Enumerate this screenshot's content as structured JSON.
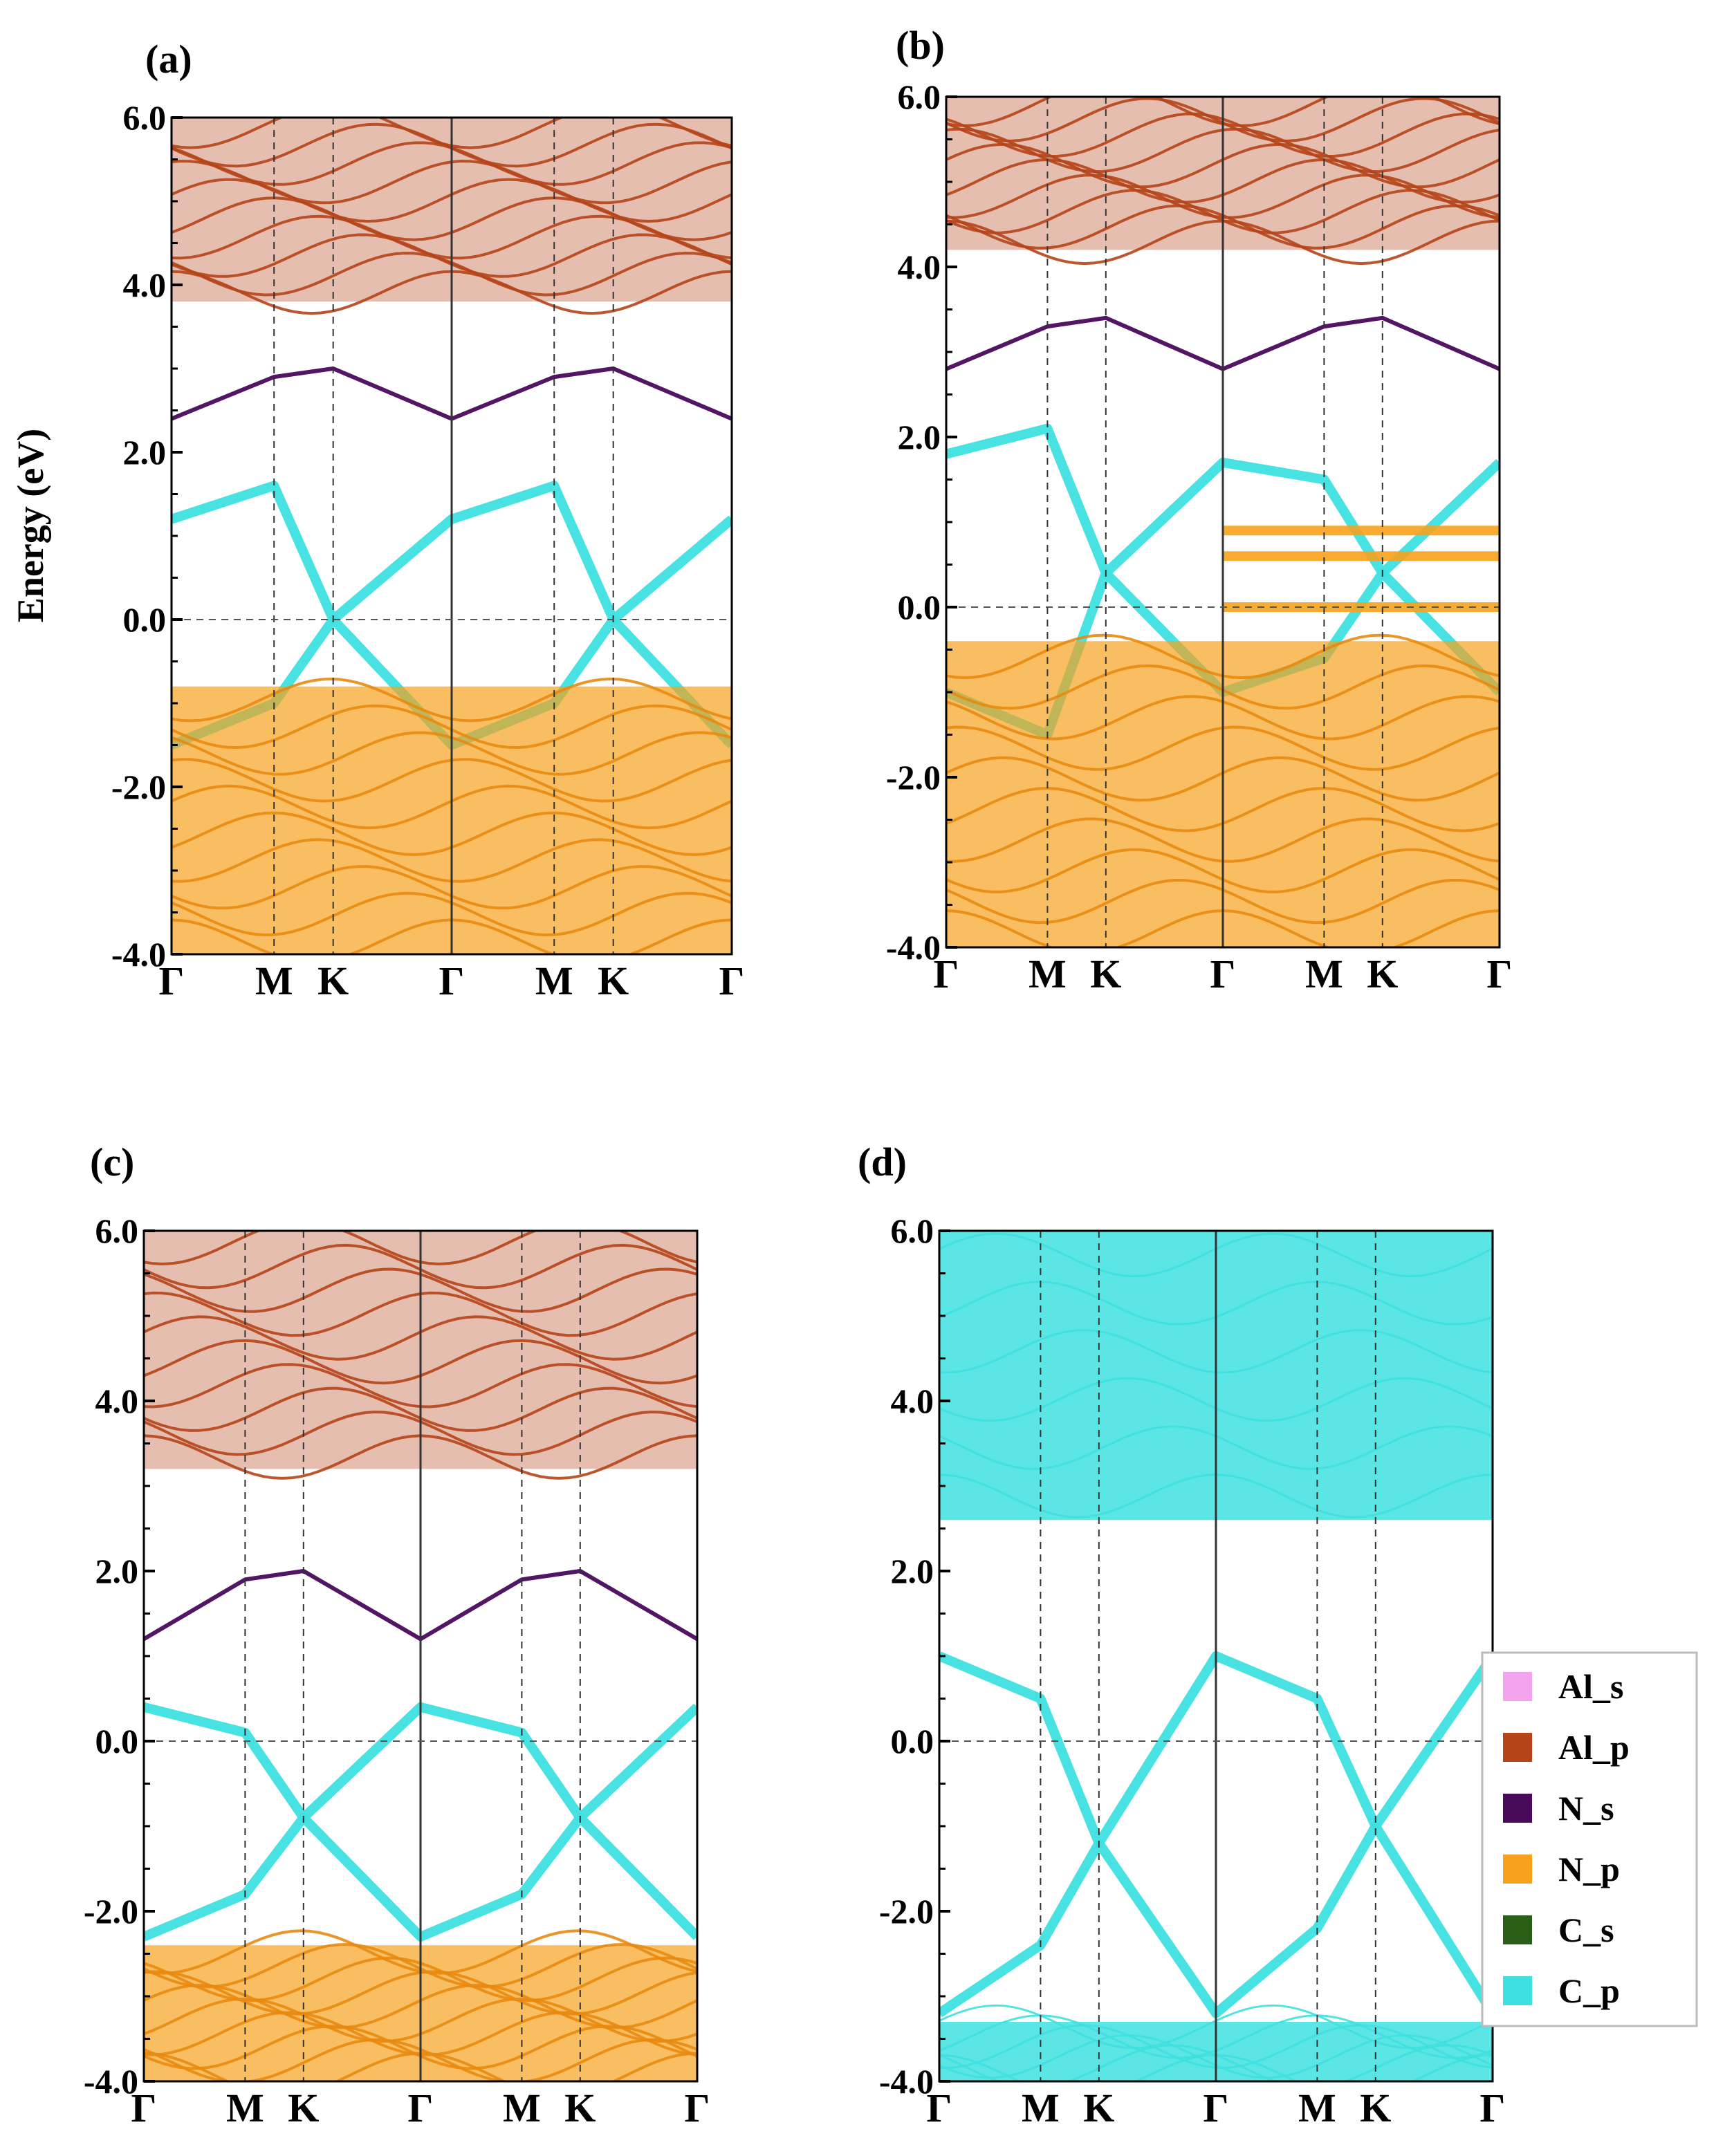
{
  "figure": {
    "ylabel": "Energy (eV)",
    "ytick_labels": [
      "6.0",
      "4.0",
      "2.0",
      "0.0",
      "-2.0",
      "-4.0"
    ],
    "kpath": [
      "Γ",
      "M",
      "K",
      "Γ",
      "M",
      "K",
      "Γ"
    ]
  },
  "colors": {
    "Al_s": "#f4a3ee",
    "Al_p": "#b5441a",
    "N_s": "#4a0a5c",
    "N_p": "#f7a21e",
    "C_s": "#2b5e17",
    "C_p": "#3fe0e0"
  },
  "legend": {
    "entries": [
      {
        "name": "Al_s",
        "color": "#f4a3ee"
      },
      {
        "name": "Al_p",
        "color": "#b5441a"
      },
      {
        "name": "N_s",
        "color": "#4a0a5c"
      },
      {
        "name": "N_p",
        "color": "#f7a21e"
      },
      {
        "name": "C_s",
        "color": "#2b5e17"
      },
      {
        "name": "C_p",
        "color": "#3fe0e0"
      }
    ]
  },
  "chart_data": [
    {
      "type": "line",
      "panel": "(a)",
      "title": "(a)",
      "xlabel": "",
      "ylabel": "Energy (eV)",
      "ylim": [
        -4.0,
        6.0
      ],
      "yticks": [
        6.0,
        4.0,
        2.0,
        0.0,
        -2.0,
        -4.0
      ],
      "kpath": [
        "Γ",
        "M",
        "K",
        "Γ",
        "M",
        "K",
        "Γ"
      ],
      "kpos": [
        0,
        0.366,
        0.577,
        1.0,
        1.366,
        1.577,
        2.0
      ],
      "fermi_level": 0.0,
      "series": [
        {
          "name": "C_p",
          "note": "Dirac cone at K",
          "values": [
            {
              "k": 0,
              "e": 1.2
            },
            {
              "k": 0.366,
              "e": 1.6
            },
            {
              "k": 0.577,
              "e": 0.0
            },
            {
              "k": 1.0,
              "e": 1.2
            },
            {
              "k": 1.366,
              "e": 1.6
            },
            {
              "k": 1.577,
              "e": 0.0
            },
            {
              "k": 2.0,
              "e": 1.2
            }
          ]
        },
        {
          "name": "C_p",
          "values": [
            {
              "k": 0,
              "e": -1.5
            },
            {
              "k": 0.366,
              "e": -1.0
            },
            {
              "k": 0.577,
              "e": 0.0
            },
            {
              "k": 1.0,
              "e": -1.5
            },
            {
              "k": 1.366,
              "e": -1.0
            },
            {
              "k": 1.577,
              "e": 0.0
            },
            {
              "k": 2.0,
              "e": -1.5
            }
          ]
        },
        {
          "name": "N_s",
          "values": [
            {
              "k": 0,
              "e": 2.4
            },
            {
              "k": 0.366,
              "e": 2.9
            },
            {
              "k": 0.577,
              "e": 3.0
            },
            {
              "k": 1.0,
              "e": 2.4
            },
            {
              "k": 1.366,
              "e": 2.9
            },
            {
              "k": 1.577,
              "e": 3.0
            },
            {
              "k": 2.0,
              "e": 2.4
            }
          ]
        },
        {
          "name": "N_p",
          "band": [
            -4.0,
            -0.8
          ]
        },
        {
          "name": "Al_p",
          "band": [
            3.8,
            6.0
          ]
        }
      ]
    },
    {
      "type": "line",
      "panel": "(b)",
      "title": "(b)",
      "xlabel": "",
      "ylabel": "",
      "ylim": [
        -4.0,
        6.0
      ],
      "yticks": [
        6.0,
        4.0,
        2.0,
        0.0,
        -2.0,
        -4.0
      ],
      "kpath": [
        "Γ",
        "M",
        "K",
        "Γ",
        "M",
        "K",
        "Γ"
      ],
      "kpos": [
        0,
        0.366,
        0.577,
        1.0,
        1.366,
        1.577,
        2.0
      ],
      "fermi_level": 0.0,
      "series": [
        {
          "name": "C_p",
          "values": [
            {
              "k": 0,
              "e": 1.8
            },
            {
              "k": 0.366,
              "e": 2.1
            },
            {
              "k": 0.577,
              "e": 0.4
            },
            {
              "k": 1.0,
              "e": 1.7
            },
            {
              "k": 1.366,
              "e": 1.5
            },
            {
              "k": 1.577,
              "e": 0.4
            },
            {
              "k": 2.0,
              "e": 1.7
            }
          ]
        },
        {
          "name": "C_p",
          "values": [
            {
              "k": 0,
              "e": -1.0
            },
            {
              "k": 0.366,
              "e": -1.5
            },
            {
              "k": 0.577,
              "e": 0.4
            },
            {
              "k": 1.0,
              "e": -1.0
            },
            {
              "k": 1.366,
              "e": -0.6
            },
            {
              "k": 1.577,
              "e": 0.4
            },
            {
              "k": 2.0,
              "e": -1.0
            }
          ]
        },
        {
          "name": "N_s",
          "values": [
            {
              "k": 0,
              "e": 2.8
            },
            {
              "k": 0.366,
              "e": 3.3
            },
            {
              "k": 0.577,
              "e": 3.4
            },
            {
              "k": 1.0,
              "e": 2.8
            },
            {
              "k": 1.366,
              "e": 3.3
            },
            {
              "k": 1.577,
              "e": 3.4
            },
            {
              "k": 2.0,
              "e": 2.8
            }
          ]
        },
        {
          "name": "N_p",
          "band": [
            -4.0,
            -0.4
          ]
        },
        {
          "name": "N_p",
          "note": "flat bands in second half",
          "flat": [
            0.0,
            0.6,
            0.9
          ]
        },
        {
          "name": "Al_p",
          "band": [
            4.2,
            6.0
          ]
        }
      ]
    },
    {
      "type": "line",
      "panel": "(c)",
      "title": "(c)",
      "xlabel": "",
      "ylabel": "",
      "ylim": [
        -4.0,
        6.0
      ],
      "yticks": [
        6.0,
        4.0,
        2.0,
        0.0,
        -2.0,
        -4.0
      ],
      "kpath": [
        "Γ",
        "M",
        "K",
        "Γ",
        "M",
        "K",
        "Γ"
      ],
      "kpos": [
        0,
        0.366,
        0.577,
        1.0,
        1.366,
        1.577,
        2.0
      ],
      "fermi_level": 0.0,
      "series": [
        {
          "name": "C_p",
          "values": [
            {
              "k": 0,
              "e": 0.4
            },
            {
              "k": 0.366,
              "e": 0.1
            },
            {
              "k": 0.577,
              "e": -0.9
            },
            {
              "k": 1.0,
              "e": 0.4
            },
            {
              "k": 1.366,
              "e": 0.1
            },
            {
              "k": 1.577,
              "e": -0.9
            },
            {
              "k": 2.0,
              "e": 0.4
            }
          ]
        },
        {
          "name": "C_p",
          "values": [
            {
              "k": 0,
              "e": -2.3
            },
            {
              "k": 0.366,
              "e": -1.8
            },
            {
              "k": 0.577,
              "e": -0.9
            },
            {
              "k": 1.0,
              "e": -2.3
            },
            {
              "k": 1.366,
              "e": -1.8
            },
            {
              "k": 1.577,
              "e": -0.9
            },
            {
              "k": 2.0,
              "e": -2.3
            }
          ]
        },
        {
          "name": "N_s",
          "values": [
            {
              "k": 0,
              "e": 1.2
            },
            {
              "k": 0.366,
              "e": 1.9
            },
            {
              "k": 0.577,
              "e": 2.0
            },
            {
              "k": 1.0,
              "e": 1.2
            },
            {
              "k": 1.366,
              "e": 1.9
            },
            {
              "k": 1.577,
              "e": 2.0
            },
            {
              "k": 2.0,
              "e": 1.2
            }
          ]
        },
        {
          "name": "N_p",
          "band": [
            -4.0,
            -2.4
          ]
        },
        {
          "name": "Al_p",
          "band": [
            3.2,
            6.0
          ]
        }
      ]
    },
    {
      "type": "line",
      "panel": "(d)",
      "title": "(d)",
      "xlabel": "",
      "ylabel": "",
      "ylim": [
        -4.0,
        6.0
      ],
      "yticks": [
        6.0,
        4.0,
        2.0,
        0.0,
        -2.0,
        -4.0
      ],
      "kpath": [
        "Γ",
        "M",
        "K",
        "Γ",
        "M",
        "K",
        "Γ"
      ],
      "kpos": [
        0,
        0.366,
        0.577,
        1.0,
        1.366,
        1.577,
        2.0
      ],
      "fermi_level": 0.0,
      "series": [
        {
          "name": "C_p",
          "values": [
            {
              "k": 0,
              "e": 1.0
            },
            {
              "k": 0.366,
              "e": 0.5
            },
            {
              "k": 0.577,
              "e": -1.2
            },
            {
              "k": 1.0,
              "e": 1.0
            },
            {
              "k": 1.366,
              "e": 0.5
            },
            {
              "k": 1.577,
              "e": -1.0
            },
            {
              "k": 2.0,
              "e": 1.0
            }
          ]
        },
        {
          "name": "C_p",
          "values": [
            {
              "k": 0,
              "e": -3.2
            },
            {
              "k": 0.366,
              "e": -2.4
            },
            {
              "k": 0.577,
              "e": -1.2
            },
            {
              "k": 1.0,
              "e": -3.2
            },
            {
              "k": 1.366,
              "e": -2.2
            },
            {
              "k": 1.577,
              "e": -1.0
            },
            {
              "k": 2.0,
              "e": -3.2
            }
          ]
        },
        {
          "name": "C_p",
          "band": [
            2.6,
            6.0
          ]
        },
        {
          "name": "C_p",
          "band": [
            -4.0,
            -3.3
          ]
        }
      ]
    }
  ]
}
